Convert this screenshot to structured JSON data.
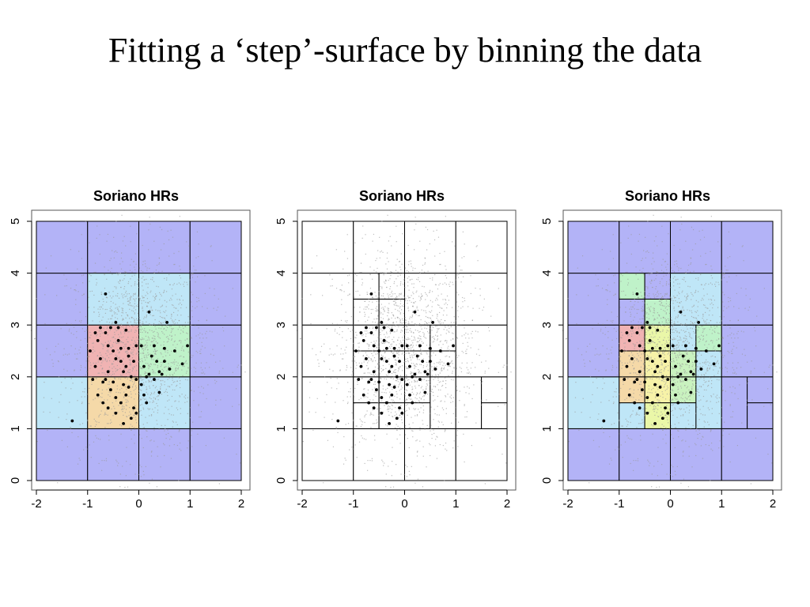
{
  "slide": {
    "title": "Fitting a ‘step’-surface by binning the data"
  },
  "chart_data": [
    {
      "type": "scatter",
      "title": "Soriano HRs",
      "xlim": [
        -2,
        2
      ],
      "ylim": [
        0,
        5
      ],
      "xticks": [
        "-2",
        "-1",
        "0",
        "1",
        "2"
      ],
      "yticks": [
        "0",
        "1",
        "2",
        "3",
        "4",
        "5"
      ],
      "background_points": "dense grey cloud centred near (0, 2.5)",
      "points": [
        [
          -1.3,
          1.15
        ],
        [
          -0.8,
          1.65
        ],
        [
          -0.7,
          1.5
        ],
        [
          -0.55,
          1.75
        ],
        [
          -0.45,
          1.6
        ],
        [
          -0.35,
          1.5
        ],
        [
          -0.3,
          1.85
        ],
        [
          -0.25,
          1.65
        ],
        [
          -0.1,
          1.4
        ],
        [
          -0.15,
          1.2
        ],
        [
          -0.3,
          1.1
        ],
        [
          -0.6,
          1.4
        ],
        [
          -0.85,
          2.2
        ],
        [
          -0.75,
          2.35
        ],
        [
          -0.6,
          2.1
        ],
        [
          -0.45,
          2.35
        ],
        [
          -0.35,
          2.55
        ],
        [
          -0.2,
          2.4
        ],
        [
          -0.05,
          2.6
        ],
        [
          -0.8,
          2.7
        ],
        [
          -0.65,
          2.85
        ],
        [
          -0.5,
          2.5
        ],
        [
          -0.4,
          2.7
        ],
        [
          -0.25,
          2.9
        ],
        [
          -0.1,
          2.3
        ],
        [
          -0.55,
          2.95
        ],
        [
          -0.45,
          3.05
        ],
        [
          -0.75,
          2.95
        ],
        [
          -0.3,
          2.1
        ],
        [
          -0.15,
          2.0
        ],
        [
          -0.05,
          1.95
        ],
        [
          -0.2,
          2.55
        ],
        [
          -0.95,
          2.5
        ],
        [
          -0.85,
          2.85
        ],
        [
          -0.6,
          2.6
        ],
        [
          -0.35,
          2.3
        ],
        [
          -0.65,
          1.95
        ],
        [
          -0.5,
          1.9
        ],
        [
          0.1,
          1.65
        ],
        [
          0.15,
          1.5
        ],
        [
          0.05,
          1.85
        ],
        [
          0.1,
          2.2
        ],
        [
          0.2,
          2.05
        ],
        [
          0.25,
          2.4
        ],
        [
          0.3,
          2.6
        ],
        [
          0.35,
          2.3
        ],
        [
          0.4,
          1.7
        ],
        [
          0.45,
          2.05
        ],
        [
          0.5,
          2.55
        ],
        [
          0.55,
          3.05
        ],
        [
          0.7,
          2.5
        ],
        [
          0.85,
          2.25
        ],
        [
          0.95,
          2.6
        ],
        [
          0.2,
          3.25
        ],
        [
          -0.65,
          3.6
        ],
        [
          0.4,
          2.1
        ],
        [
          0.6,
          2.15
        ],
        [
          0.05,
          2.6
        ],
        [
          -0.05,
          1.3
        ],
        [
          -0.7,
          1.9
        ],
        [
          -0.9,
          1.95
        ],
        [
          -0.2,
          1.8
        ],
        [
          0.3,
          1.95
        ],
        [
          0.5,
          2.3
        ],
        [
          -0.4,
          2.95
        ],
        [
          0.15,
          2.0
        ],
        [
          -0.25,
          2.2
        ],
        [
          -0.45,
          1.3
        ]
      ],
      "cells": [
        {
          "bounds": [
            -2,
            -1,
            0,
            1
          ],
          "color": "#b3b3f7"
        },
        {
          "bounds": [
            -1,
            0,
            0,
            1
          ],
          "color": "#b3b3f7"
        },
        {
          "bounds": [
            0,
            1,
            0,
            1
          ],
          "color": "#b3b3f7"
        },
        {
          "bounds": [
            1,
            2,
            0,
            1
          ],
          "color": "#b3b3f7"
        },
        {
          "bounds": [
            -2,
            -1,
            1,
            2
          ],
          "color": "#bfe6f7"
        },
        {
          "bounds": [
            -1,
            0,
            1,
            2
          ],
          "color": "#f5d9a8"
        },
        {
          "bounds": [
            0,
            1,
            1,
            2
          ],
          "color": "#bfe6f7"
        },
        {
          "bounds": [
            1,
            2,
            1,
            2
          ],
          "color": "#b3b3f7"
        },
        {
          "bounds": [
            -2,
            -1,
            2,
            3
          ],
          "color": "#b3b3f7"
        },
        {
          "bounds": [
            -1,
            0,
            2,
            3
          ],
          "color": "#f0b3b3"
        },
        {
          "bounds": [
            0,
            1,
            2,
            3
          ],
          "color": "#bff2c9"
        },
        {
          "bounds": [
            1,
            2,
            2,
            3
          ],
          "color": "#b3b3f7"
        },
        {
          "bounds": [
            -2,
            -1,
            3,
            4
          ],
          "color": "#b3b3f7"
        },
        {
          "bounds": [
            -1,
            0,
            3,
            4
          ],
          "color": "#bfe6f7"
        },
        {
          "bounds": [
            0,
            1,
            3,
            4
          ],
          "color": "#bfe6f7"
        },
        {
          "bounds": [
            1,
            2,
            3,
            4
          ],
          "color": "#b3b3f7"
        },
        {
          "bounds": [
            -2,
            -1,
            4,
            5
          ],
          "color": "#b3b3f7"
        },
        {
          "bounds": [
            -1,
            0,
            4,
            5
          ],
          "color": "#b3b3f7"
        },
        {
          "bounds": [
            0,
            1,
            4,
            5
          ],
          "color": "#b3b3f7"
        },
        {
          "bounds": [
            1,
            2,
            4,
            5
          ],
          "color": "#b3b3f7"
        }
      ]
    },
    {
      "type": "scatter",
      "title": "Soriano HRs",
      "xlim": [
        -2,
        2
      ],
      "ylim": [
        0,
        5
      ],
      "xticks": [
        "-2",
        "-1",
        "0",
        "1",
        "2"
      ],
      "yticks": [
        "0",
        "1",
        "2",
        "3",
        "4",
        "5"
      ],
      "background_points": "dense grey cloud centred near (0, 2.5)",
      "same_points_as_panel": 0,
      "cells": [
        {
          "bounds": [
            -2,
            -1,
            0,
            1
          ],
          "color": "#ffffff"
        },
        {
          "bounds": [
            -1,
            0,
            0,
            1
          ],
          "color": "#ffffff"
        },
        {
          "bounds": [
            0,
            1,
            0,
            1
          ],
          "color": "#ffffff"
        },
        {
          "bounds": [
            1,
            2,
            0,
            1
          ],
          "color": "#ffffff"
        },
        {
          "bounds": [
            -2,
            -1,
            1,
            2
          ],
          "color": "#ffffff"
        },
        {
          "bounds": [
            -1,
            -0.5,
            1,
            1.5
          ],
          "color": "#ffffff"
        },
        {
          "bounds": [
            -1,
            -0.5,
            1.5,
            2
          ],
          "color": "#ffffff"
        },
        {
          "bounds": [
            -0.5,
            0,
            1,
            1.5
          ],
          "color": "#ffffff"
        },
        {
          "bounds": [
            -0.5,
            0,
            1.5,
            2
          ],
          "color": "#ffffff"
        },
        {
          "bounds": [
            0,
            0.5,
            1,
            1.5
          ],
          "color": "#ffffff"
        },
        {
          "bounds": [
            0,
            0.5,
            1.5,
            2
          ],
          "color": "#ffffff"
        },
        {
          "bounds": [
            0.5,
            1,
            1,
            2
          ],
          "color": "#ffffff"
        },
        {
          "bounds": [
            1,
            1.5,
            1,
            2
          ],
          "color": "#ffffff"
        },
        {
          "bounds": [
            1.5,
            2,
            1,
            1.5
          ],
          "color": "#ffffff"
        },
        {
          "bounds": [
            1.5,
            2,
            1.5,
            2
          ],
          "color": "#ffffff"
        },
        {
          "bounds": [
            -2,
            -1,
            2,
            3
          ],
          "color": "#ffffff"
        },
        {
          "bounds": [
            -1,
            -0.5,
            2,
            2.5
          ],
          "color": "#ffffff"
        },
        {
          "bounds": [
            -1,
            -0.5,
            2.5,
            3
          ],
          "color": "#ffffff"
        },
        {
          "bounds": [
            -0.5,
            0,
            2,
            2.5
          ],
          "color": "#ffffff"
        },
        {
          "bounds": [
            -0.5,
            0,
            2.5,
            3
          ],
          "color": "#ffffff"
        },
        {
          "bounds": [
            0,
            0.5,
            2,
            2.5
          ],
          "color": "#ffffff"
        },
        {
          "bounds": [
            0,
            0.5,
            2.5,
            3
          ],
          "color": "#ffffff"
        },
        {
          "bounds": [
            0.5,
            1,
            2,
            2.5
          ],
          "color": "#ffffff"
        },
        {
          "bounds": [
            0.5,
            1,
            2.5,
            3
          ],
          "color": "#ffffff"
        },
        {
          "bounds": [
            1,
            2,
            2,
            3
          ],
          "color": "#ffffff"
        },
        {
          "bounds": [
            -2,
            -1,
            3,
            4
          ],
          "color": "#ffffff"
        },
        {
          "bounds": [
            -1,
            -0.5,
            3,
            3.5
          ],
          "color": "#ffffff"
        },
        {
          "bounds": [
            -1,
            -0.5,
            3.5,
            4
          ],
          "color": "#ffffff"
        },
        {
          "bounds": [
            -0.5,
            0,
            3,
            3.5
          ],
          "color": "#ffffff"
        },
        {
          "bounds": [
            -0.5,
            0,
            3.5,
            4
          ],
          "color": "#ffffff"
        },
        {
          "bounds": [
            0,
            1,
            3,
            4
          ],
          "color": "#ffffff"
        },
        {
          "bounds": [
            1,
            2,
            3,
            4
          ],
          "color": "#ffffff"
        },
        {
          "bounds": [
            -2,
            -1,
            4,
            5
          ],
          "color": "#ffffff"
        },
        {
          "bounds": [
            -1,
            0,
            4,
            5
          ],
          "color": "#ffffff"
        },
        {
          "bounds": [
            0,
            1,
            4,
            5
          ],
          "color": "#ffffff"
        },
        {
          "bounds": [
            1,
            2,
            4,
            5
          ],
          "color": "#ffffff"
        }
      ]
    },
    {
      "type": "scatter",
      "title": "Soriano HRs",
      "xlim": [
        -2,
        2
      ],
      "ylim": [
        0,
        5
      ],
      "xticks": [
        "-2",
        "-1",
        "0",
        "1",
        "2"
      ],
      "yticks": [
        "0",
        "1",
        "2",
        "3",
        "4",
        "5"
      ],
      "background_points": "dense grey cloud centred near (0, 2.5)",
      "same_points_as_panel": 0,
      "cells": [
        {
          "bounds": [
            -2,
            -1,
            0,
            1
          ],
          "color": "#b3b3f7"
        },
        {
          "bounds": [
            -1,
            0,
            0,
            1
          ],
          "color": "#b3b3f7"
        },
        {
          "bounds": [
            0,
            1,
            0,
            1
          ],
          "color": "#b3b3f7"
        },
        {
          "bounds": [
            1,
            2,
            0,
            1
          ],
          "color": "#b3b3f7"
        },
        {
          "bounds": [
            -2,
            -1,
            1,
            2
          ],
          "color": "#bfe6f7"
        },
        {
          "bounds": [
            -1,
            -0.5,
            1,
            1.5
          ],
          "color": "#bfe6f7"
        },
        {
          "bounds": [
            -1,
            -0.5,
            1.5,
            2
          ],
          "color": "#f5d9a8"
        },
        {
          "bounds": [
            -0.5,
            0,
            1,
            1.5
          ],
          "color": "#eaf7a8"
        },
        {
          "bounds": [
            -0.5,
            0,
            1.5,
            2
          ],
          "color": "#f7f2a8"
        },
        {
          "bounds": [
            0,
            0.5,
            1,
            1.5
          ],
          "color": "#bfe6f7"
        },
        {
          "bounds": [
            0,
            0.5,
            1.5,
            2
          ],
          "color": "#c9f2bf"
        },
        {
          "bounds": [
            0.5,
            1,
            1,
            2
          ],
          "color": "#bfe6f7"
        },
        {
          "bounds": [
            1,
            1.5,
            1,
            2
          ],
          "color": "#b3b3f7"
        },
        {
          "bounds": [
            1.5,
            2,
            1,
            1.5
          ],
          "color": "#b3b3f7"
        },
        {
          "bounds": [
            1.5,
            2,
            1.5,
            2
          ],
          "color": "#b3b3f7"
        },
        {
          "bounds": [
            -2,
            -1,
            2,
            3
          ],
          "color": "#b3b3f7"
        },
        {
          "bounds": [
            -1,
            -0.5,
            2,
            2.5
          ],
          "color": "#f5d9a8"
        },
        {
          "bounds": [
            -1,
            -0.5,
            2.5,
            3
          ],
          "color": "#f0b3b3"
        },
        {
          "bounds": [
            -0.5,
            0,
            2,
            2.5
          ],
          "color": "#f7f2a8"
        },
        {
          "bounds": [
            -0.5,
            0,
            2.5,
            3
          ],
          "color": "#eaf7a8"
        },
        {
          "bounds": [
            0,
            0.5,
            2,
            2.5
          ],
          "color": "#c9f2bf"
        },
        {
          "bounds": [
            0,
            0.5,
            2.5,
            3
          ],
          "color": "#bfe6f7"
        },
        {
          "bounds": [
            0.5,
            1,
            2,
            2.5
          ],
          "color": "#bfe6f7"
        },
        {
          "bounds": [
            0.5,
            1,
            2.5,
            3
          ],
          "color": "#bff2c9"
        },
        {
          "bounds": [
            1,
            2,
            2,
            3
          ],
          "color": "#b3b3f7"
        },
        {
          "bounds": [
            -2,
            -1,
            3,
            4
          ],
          "color": "#b3b3f7"
        },
        {
          "bounds": [
            -1,
            -0.5,
            3,
            3.5
          ],
          "color": "#b3b3f7"
        },
        {
          "bounds": [
            -1,
            -0.5,
            3.5,
            4
          ],
          "color": "#bff2c9"
        },
        {
          "bounds": [
            -0.5,
            0,
            3,
            3.5
          ],
          "color": "#bff2c9"
        },
        {
          "bounds": [
            -0.5,
            0,
            3.5,
            4
          ],
          "color": "#b3b3f7"
        },
        {
          "bounds": [
            0,
            1,
            3,
            4
          ],
          "color": "#bfe6f7"
        },
        {
          "bounds": [
            1,
            2,
            3,
            4
          ],
          "color": "#b3b3f7"
        },
        {
          "bounds": [
            -2,
            -1,
            4,
            5
          ],
          "color": "#b3b3f7"
        },
        {
          "bounds": [
            -1,
            0,
            4,
            5
          ],
          "color": "#b3b3f7"
        },
        {
          "bounds": [
            0,
            1,
            4,
            5
          ],
          "color": "#b3b3f7"
        },
        {
          "bounds": [
            1,
            2,
            4,
            5
          ],
          "color": "#b3b3f7"
        }
      ]
    }
  ]
}
